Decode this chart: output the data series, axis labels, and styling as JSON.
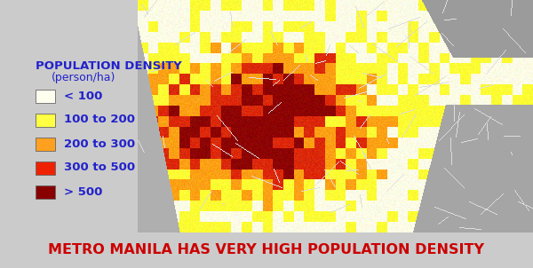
{
  "title": "METRO MANILA HAS VERY HIGH POPULATION DENSITY",
  "title_color": "#cc0000",
  "title_fontsize": 11.5,
  "legend_title_line1": "POPULATION DENSITY",
  "legend_title_line2": "(person/ha)",
  "legend_title_color": "#2222cc",
  "legend_title_fontsize": 9.5,
  "legend_label_color": "#2222cc",
  "legend_label_fontsize": 9.5,
  "legend_items": [
    {
      "label": "< 100",
      "color": "#fffff0"
    },
    {
      "label": "100 to 200",
      "color": "#ffff44"
    },
    {
      "label": "200 to 300",
      "color": "#ffa020"
    },
    {
      "label": "300 to 500",
      "color": "#ee2200"
    },
    {
      "label": "> 500",
      "color": "#880000"
    }
  ],
  "bg_color": "#cbcbcb",
  "legend_bg_color": "#d5d5d5",
  "figsize": [
    6.0,
    3.02
  ],
  "dpi": 100
}
